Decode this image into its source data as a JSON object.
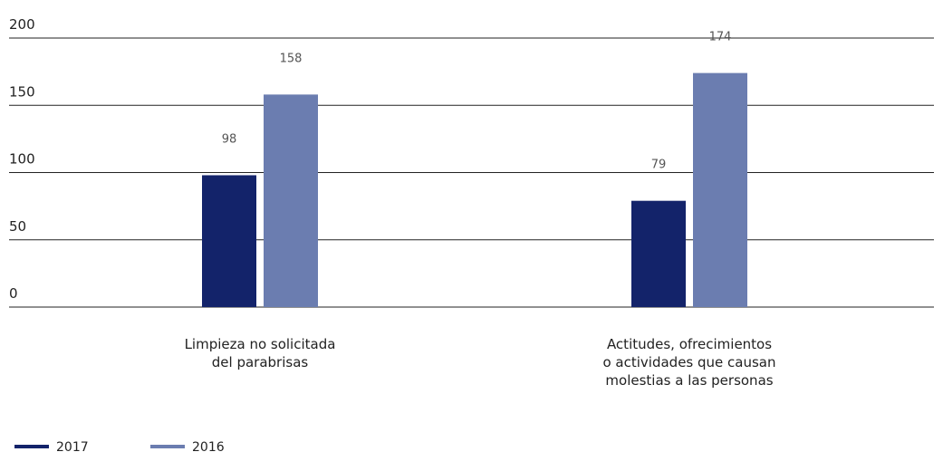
{
  "chart_data": {
    "type": "bar",
    "categories": [
      [
        "Limpieza no solicitada",
        "del parabrisas"
      ],
      [
        "Actitudes, ofrecimientos",
        "o actividades que causan",
        "molestias a las personas"
      ]
    ],
    "series": [
      {
        "name": "2017",
        "color": "#13236a",
        "values": [
          98,
          79
        ]
      },
      {
        "name": "2016",
        "color": "#6b7db0",
        "values": [
          158,
          174
        ]
      }
    ],
    "ylim": [
      0,
      200
    ],
    "yticks": [
      0,
      50,
      100,
      150,
      200
    ],
    "grid": true,
    "legend": "bottom-left"
  }
}
